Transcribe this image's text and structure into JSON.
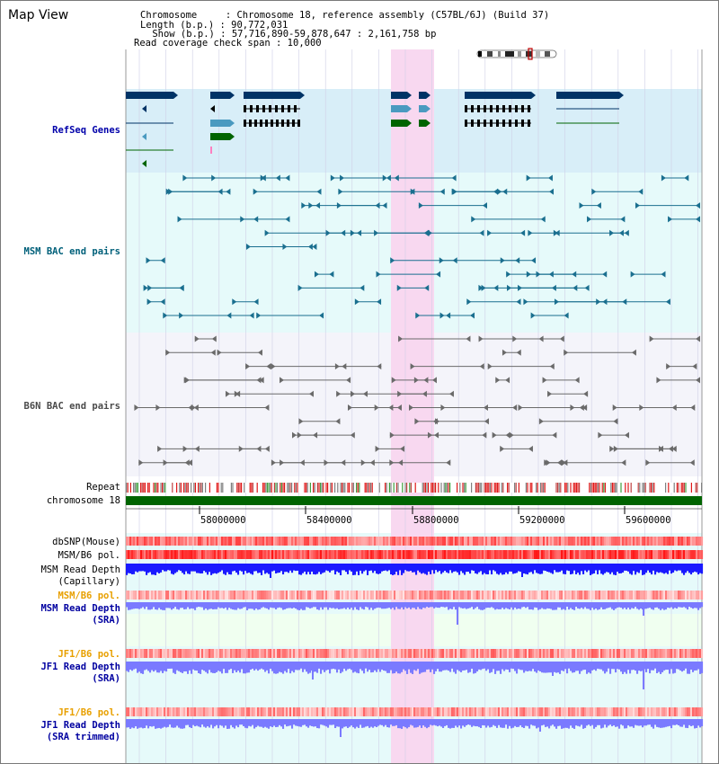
{
  "app": {
    "title": "Map View"
  },
  "info": {
    "line1": "Chromosome     : Chromosome 18, reference assembly (C57BL/6J) (Build 37)",
    "line2": "Length (b.p.) : 90,772,031",
    "line3": " Show (b.p.) : 57,716,890-59,878,647 : 2,161,758 bp",
    "line4": "Read coverage check span : 10,000"
  },
  "tracks": {
    "refseq": "RefSeq Genes",
    "msm_bac": "MSM BAC end pairs",
    "b6n_bac": "B6N BAC end pairs",
    "repeat": "Repeat",
    "chromosome": "chromosome 18",
    "dbsnp": "dbSNP(Mouse)",
    "msm_b6_pol": "MSM/B6 pol.",
    "msm_read_depth_cap_1": "MSM Read Depth",
    "msm_read_depth_cap_2": "(Capillary)",
    "msm_b6_pol_sra": "MSM/B6 pol.",
    "msm_read_depth_sra_1": "MSM Read Depth",
    "msm_read_depth_sra_2": "(SRA)",
    "jf1_b6_pol": "JF1/B6 pol.",
    "jf1_read_depth_1": "JF1 Read Depth",
    "jf1_read_depth_2": "(SRA)",
    "jf1_b6_pol_trim": "JF1/B6 pol.",
    "jf1_read_depth_trim_1": "JF1 Read Depth",
    "jf1_read_depth_trim_2": "(SRA trimmed)"
  },
  "axis": {
    "ticks": [
      "58000000",
      "58400000",
      "58800000",
      "59200000",
      "59600000"
    ]
  },
  "colors": {
    "refseq_bg": "#d8eef8",
    "msm_bg": "#e6fafa",
    "b6n_bg": "#f4f4fa",
    "highlight": "#f8d8f0",
    "chrom_bar": "#006400",
    "navy": "#003366",
    "depth_blue": "#1a1aff",
    "depth_light": "#7a7aff"
  },
  "icons": {
    "ideogram": "chromosome-ideogram"
  }
}
